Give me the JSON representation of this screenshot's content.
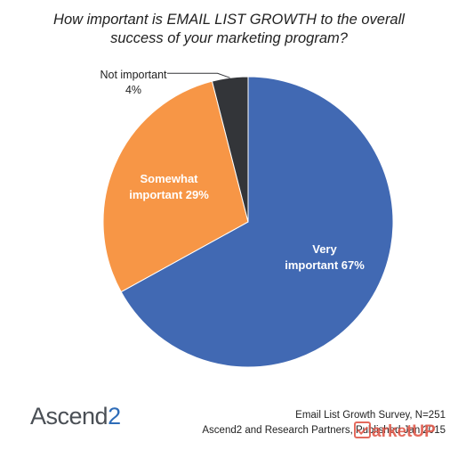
{
  "chart_data": {
    "type": "pie",
    "title": "How important is EMAIL LIST GROWTH to the overall success of your marketing program?",
    "title_lines": [
      "How important is EMAIL LIST GROWTH to the overall",
      "success of your marketing program?"
    ],
    "slices": [
      {
        "name": "Very important",
        "value": 67,
        "label_lines": [
          "Very",
          "important 67%"
        ],
        "color": "#4169b3"
      },
      {
        "name": "Somewhat important",
        "value": 29,
        "label_lines": [
          "Somewhat",
          "important 29%"
        ],
        "color": "#f79646"
      },
      {
        "name": "Not important",
        "value": 4,
        "label_lines": [
          "Not important",
          "4%"
        ],
        "color": "#333539"
      }
    ],
    "unit": "%"
  },
  "source": {
    "lines": [
      "Email List Growth Survey, N=251",
      "Ascend2 and Research Partners, Published Jan 2015"
    ]
  },
  "logo": {
    "text": "Ascend",
    "suffix": "2"
  },
  "watermark": {
    "text": "arketUP",
    "color": "#e05a4c"
  }
}
